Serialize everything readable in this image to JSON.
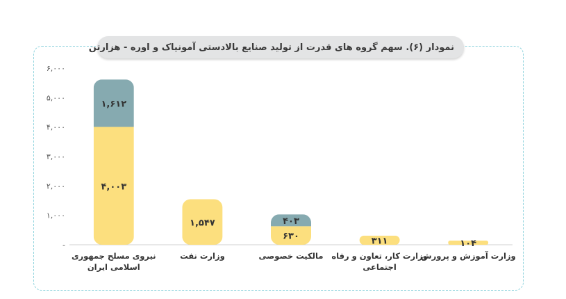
{
  "chart_data": {
    "type": "bar",
    "stacked": true,
    "title": "نمودار (۶). سهم گروه های قدرت از تولید صنایع بالادستی آمونیاک و اوره - هزارتن",
    "ylim": [
      0,
      6000
    ],
    "yticks": [
      0,
      1000,
      2000,
      3000,
      4000,
      5000,
      6000
    ],
    "ytick_labels": [
      "-",
      "۱,۰۰۰",
      "۲,۰۰۰",
      "۳,۰۰۰",
      "۴,۰۰۰",
      "۵,۰۰۰",
      "۶,۰۰۰"
    ],
    "categories": [
      [
        "نیروی مسلح جمهوری",
        "اسلامی ایران"
      ],
      [
        "وزارت نفت"
      ],
      [
        "مالکیت خصوصی"
      ],
      [
        "وزارت کار، تعاون و رفاه",
        "اجتماعی"
      ],
      [
        "وزارت آموزش و پرورش"
      ]
    ],
    "series": [
      {
        "color": "#fcdf7e",
        "values": [
          4003,
          1547,
          630,
          311,
          104
        ],
        "labels": [
          "۴,۰۰۳",
          "۱,۵۴۷",
          "۶۳۰",
          "۳۱۱",
          "۱۰۴"
        ]
      },
      {
        "color": "#86aab0",
        "values": [
          1612,
          0,
          403,
          0,
          0
        ],
        "labels": [
          "۱,۶۱۲",
          "",
          "۴۰۳",
          "",
          ""
        ]
      }
    ],
    "grid": false,
    "legend": "none"
  }
}
